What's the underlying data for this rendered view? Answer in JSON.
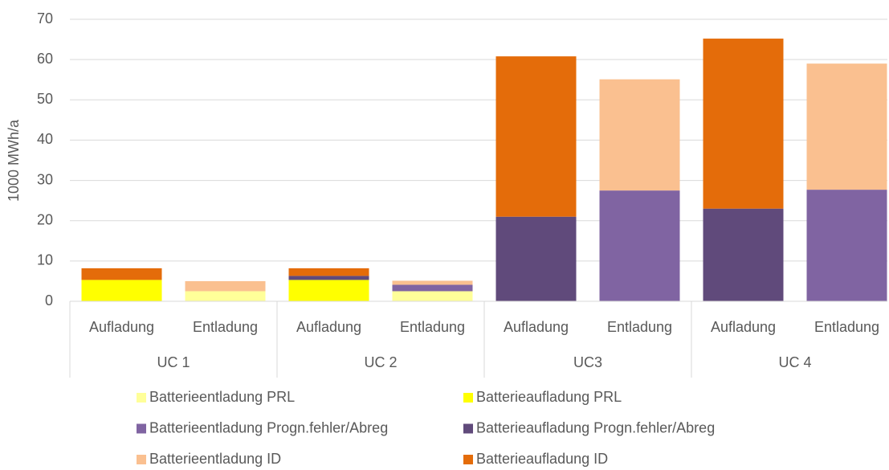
{
  "chart_data": {
    "type": "stacked_bar",
    "y_label": "1000 MWh/a",
    "categories": [
      "Aufladung",
      "Entladung",
      "Aufladung",
      "Entladung",
      "Aufladung",
      "Entladung",
      "Aufladung",
      "Entladung"
    ],
    "groups": [
      "UC 1",
      "UC 2",
      "UC3",
      "UC 4"
    ],
    "series": [
      {
        "name": "Batterieentladung PRL",
        "color": "#ffff99",
        "values": [
          null,
          2.5,
          null,
          2.5,
          null,
          0,
          null,
          0
        ]
      },
      {
        "name": "Batterieaufladung PRL",
        "color": "#ffff00",
        "values": [
          5.3,
          null,
          5.3,
          null,
          0,
          null,
          0,
          null
        ]
      },
      {
        "name": "Batterieentladung Progn.fehler/Abreg",
        "color": "#8064a2",
        "values": [
          null,
          0,
          null,
          1.6,
          null,
          27.5,
          null,
          27.7
        ]
      },
      {
        "name": "Batterieaufladung Progn.fehler/Abreg",
        "color": "#604a7b",
        "values": [
          0,
          null,
          1.0,
          null,
          21,
          null,
          23,
          null
        ]
      },
      {
        "name": "Batterieentladung ID",
        "color": "#fac090",
        "values": [
          null,
          2.5,
          null,
          1.0,
          null,
          27.6,
          null,
          31.3
        ]
      },
      {
        "name": "Batterieaufladung ID",
        "color": "#e46c0a",
        "values": [
          2.9,
          null,
          1.9,
          null,
          39.8,
          null,
          42.2,
          null
        ]
      }
    ],
    "ylim": [
      0,
      70
    ],
    "yticks": [
      0,
      10,
      20,
      30,
      40,
      50,
      60,
      70
    ],
    "grid": true
  }
}
